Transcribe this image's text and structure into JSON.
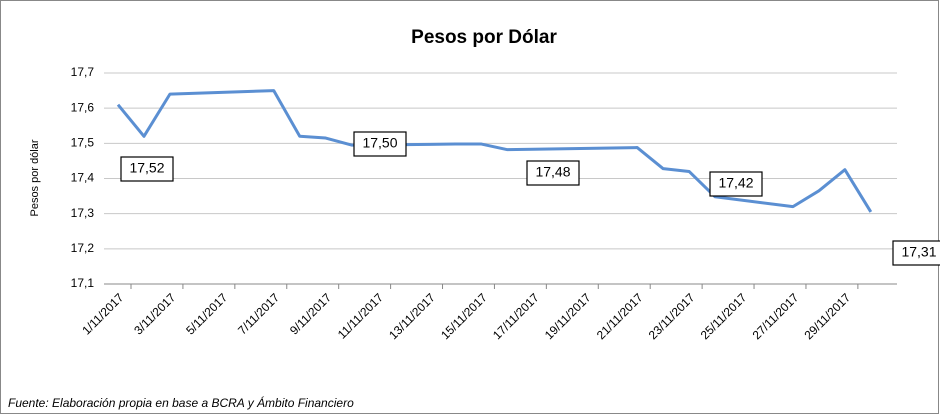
{
  "chart_data": {
    "type": "line",
    "title": "Pesos por Dólar",
    "y_label": "Pesos por dólar",
    "source": "Fuente: Elaboración propia en base a BCRA y Ámbito Financiero",
    "x": [
      "1/11/2017",
      "2/11/2017",
      "3/11/2017",
      "7/11/2017",
      "8/11/2017",
      "9/11/2017",
      "10/11/2017",
      "13/11/2017",
      "14/11/2017",
      "15/11/2017",
      "16/11/2017",
      "17/11/2017",
      "21/11/2017",
      "22/11/2017",
      "23/11/2017",
      "24/11/2017",
      "27/11/2017",
      "28/11/2017",
      "29/11/2017",
      "30/11/2017"
    ],
    "series": [
      {
        "name": "Pesos por Dólar",
        "color": "#5b8fd2",
        "values": [
          17.61,
          17.52,
          17.64,
          17.65,
          17.52,
          17.515,
          17.495,
          17.497,
          17.498,
          17.498,
          17.482,
          17.483,
          17.488,
          17.428,
          17.42,
          17.348,
          17.32,
          17.365,
          17.425,
          17.305
        ]
      }
    ],
    "xticks": [
      "1/11/2017",
      "3/11/2017",
      "5/11/2017",
      "7/11/2017",
      "9/11/2017",
      "11/11/2017",
      "13/11/2017",
      "15/11/2017",
      "17/11/2017",
      "19/11/2017",
      "21/11/2017",
      "23/11/2017",
      "25/11/2017",
      "27/11/2017",
      "29/11/2017"
    ],
    "ylim": [
      17.1,
      17.7
    ],
    "yticks": [
      {
        "value": 17.1,
        "label": "17,1"
      },
      {
        "value": 17.2,
        "label": "17,2"
      },
      {
        "value": 17.3,
        "label": "17,3"
      },
      {
        "value": 17.4,
        "label": "17,4"
      },
      {
        "value": 17.5,
        "label": "17,5"
      },
      {
        "value": 17.6,
        "label": "17,6"
      },
      {
        "value": 17.7,
        "label": "17,7"
      }
    ],
    "grid": true,
    "annotations": [
      "17,52",
      "17,50",
      "17,48",
      "17,42",
      "17,31"
    ]
  }
}
